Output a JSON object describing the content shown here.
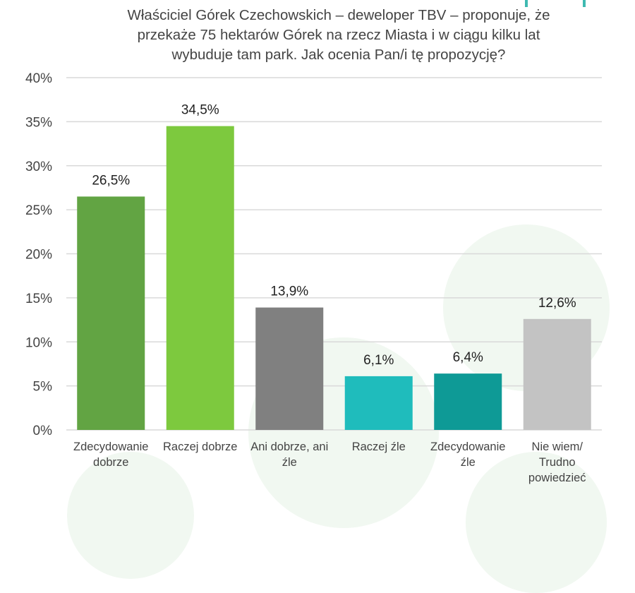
{
  "chart_data": {
    "type": "bar",
    "title_lines": [
      "Właściciel Górek Czechowskich – deweloper TBV – proponuje, że",
      "przekaże 75 hektarów Górek na rzecz Miasta i w ciągu kilku lat",
      "wybuduje tam park. Jak ocenia Pan/i tę propozycję?"
    ],
    "categories": [
      "Zdecydowanie\ndobrze",
      "Raczej dobrze",
      "Ani dobrze, ani\nźle",
      "Raczej źle",
      "Zdecydowanie\nźle",
      "Nie wiem/\nTrudno\npowiedzieć"
    ],
    "values": [
      26.5,
      34.5,
      13.9,
      6.1,
      6.4,
      12.6
    ],
    "value_labels": [
      "26,5%",
      "34,5%",
      "13,9%",
      "6,1%",
      "6,4%",
      "12,6%"
    ],
    "colors": [
      "#62a443",
      "#7dc93e",
      "#808080",
      "#1fbcbc",
      "#0e9a96",
      "#c3c3c3"
    ],
    "yticks": [
      0,
      5,
      10,
      15,
      20,
      25,
      30,
      35,
      40
    ],
    "ytick_labels": [
      "0%",
      "5%",
      "10%",
      "15%",
      "20%",
      "25%",
      "30%",
      "35%",
      "40%"
    ],
    "ylim": [
      0,
      40
    ],
    "grid": true,
    "gridline_color": "#d9d9d9"
  }
}
